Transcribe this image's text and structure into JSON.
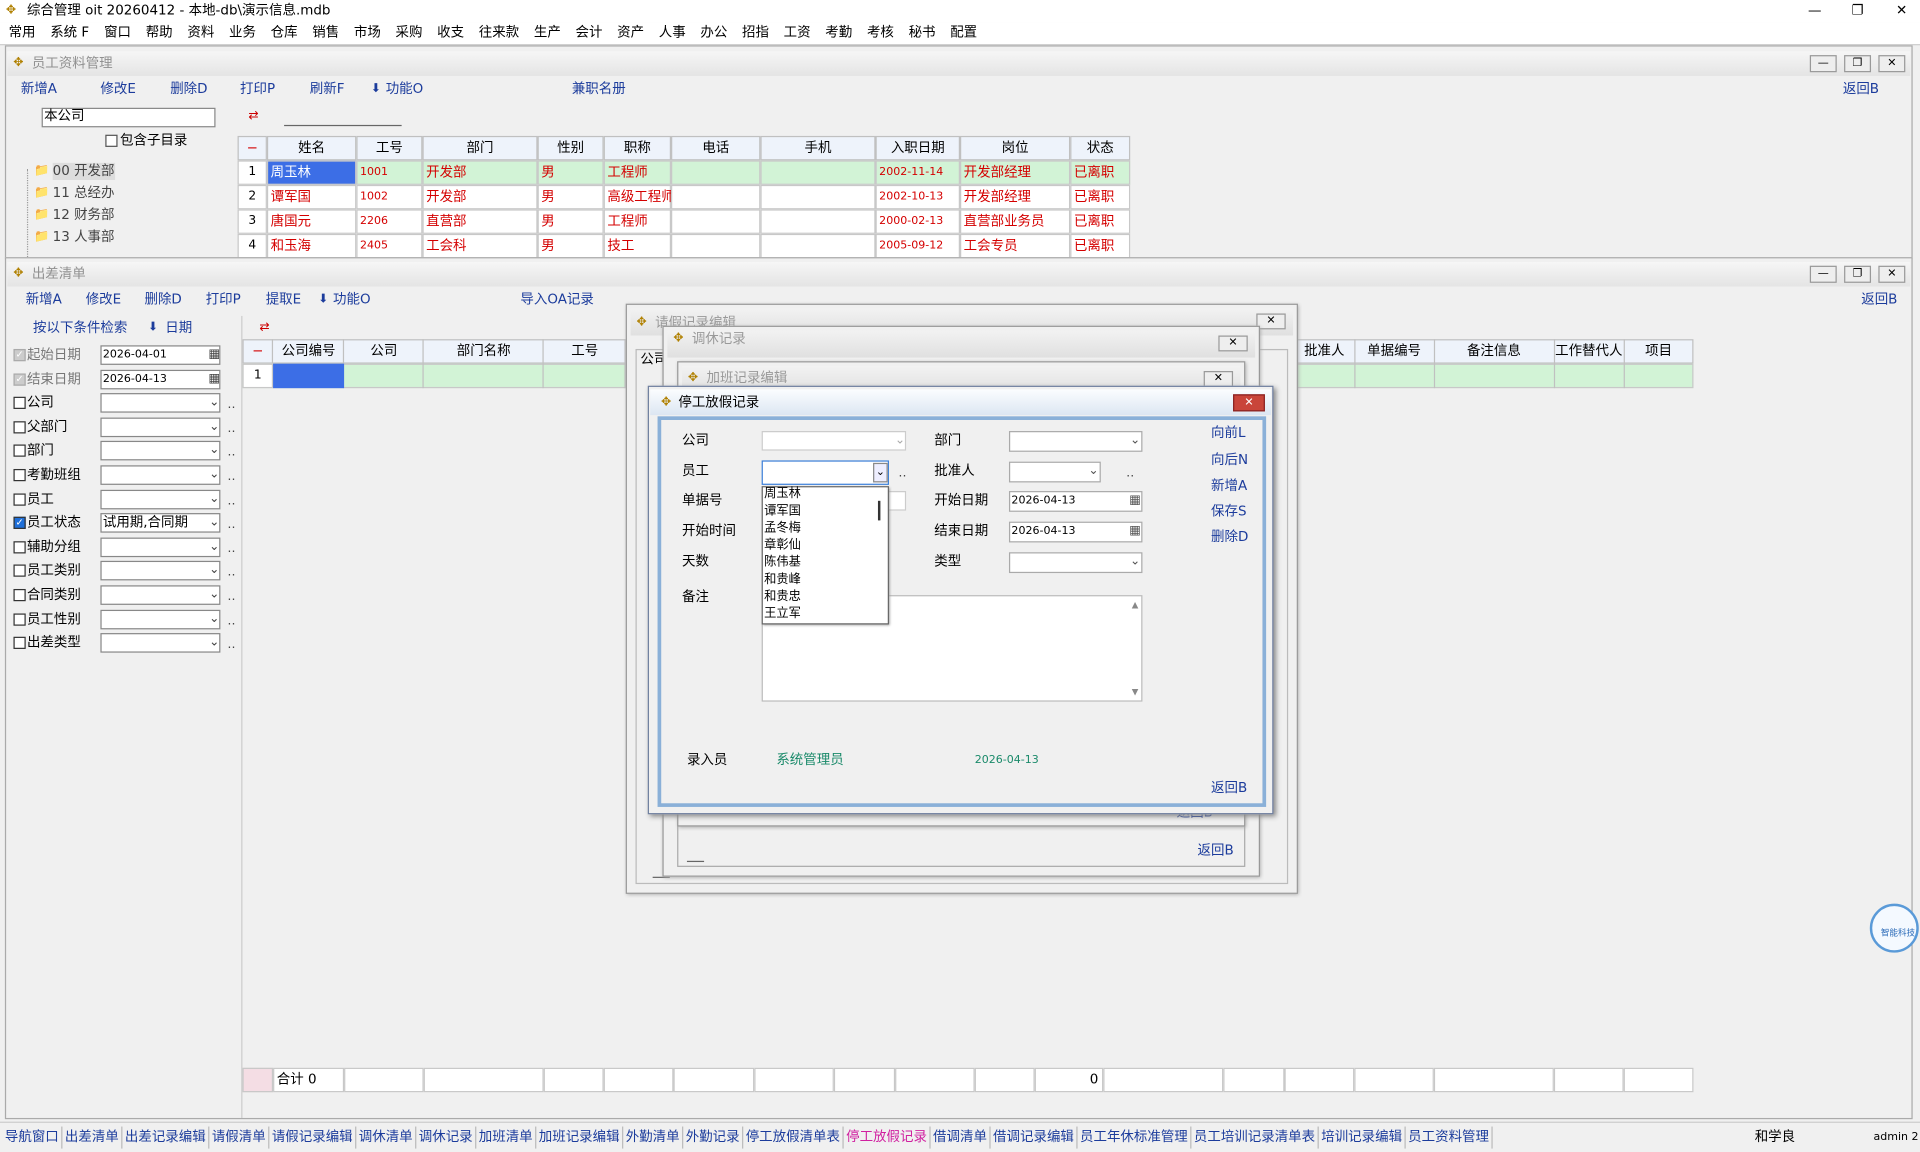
{
  "app": {
    "title": "综合管理 oit 20260412 - 本地-db\\演示信息.mdb",
    "menu": [
      "常用",
      "系统 F",
      "窗口",
      "帮助",
      "资料",
      "业务",
      "仓库",
      "销售",
      "市场",
      "采购",
      "收支",
      "往来款",
      "生产",
      "会计",
      "资产",
      "人事",
      "办公",
      "招指",
      "工资",
      "考勤",
      "考核",
      "秘书",
      "配置"
    ]
  },
  "employee_window": {
    "title": "员工资料管理",
    "toolbar": [
      "新增A",
      "修改E",
      "删除D",
      "打印P",
      "刷新F",
      "功能O",
      "兼职名册"
    ],
    "back": "返回B",
    "company": "本公司",
    "include_sub": "包含子目录",
    "tree": [
      "00 开发部",
      "11 总经办",
      "12 财务部",
      "13 人事部"
    ],
    "headers": [
      "−",
      "姓名",
      "工号",
      "部门",
      "性别",
      "职称",
      "电话",
      "手机",
      "入职日期",
      "岗位",
      "状态"
    ],
    "rows": [
      {
        "no": "1",
        "name": "周玉林",
        "id": "1001",
        "dept": "开发部",
        "sex": "男",
        "title": "工程师",
        "hire_date": "2002-11-14",
        "post": "开发部经理",
        "status": "已离职"
      },
      {
        "no": "2",
        "name": "谭军国",
        "id": "1002",
        "dept": "开发部",
        "sex": "男",
        "title": "高级工程师",
        "hire_date": "2002-10-13",
        "post": "开发部经理",
        "status": "已离职"
      },
      {
        "no": "3",
        "name": "唐国元",
        "id": "2206",
        "dept": "直营部",
        "sex": "男",
        "title": "工程师",
        "hire_date": "2000-02-13",
        "post": "直营部业务员",
        "status": "已离职"
      },
      {
        "no": "4",
        "name": "和玉海",
        "id": "2405",
        "dept": "工会科",
        "sex": "男",
        "title": "技工",
        "hire_date": "2005-09-12",
        "post": "工会专员",
        "status": "已离职"
      }
    ]
  },
  "trip_window": {
    "title": "出差清单",
    "toolbar": [
      "新增A",
      "修改E",
      "删除D",
      "打印P",
      "提取E",
      "功能O",
      "导入OA记录"
    ],
    "back": "返回B",
    "search": "按以下条件检索",
    "sort": "日期",
    "filters": [
      {
        "label": "起始日期",
        "value": "2026-04-01",
        "checked": true,
        "disabled": true
      },
      {
        "label": "结束日期",
        "value": "2026-04-13",
        "checked": true,
        "disabled": true
      },
      {
        "label": "公司",
        "checked": false
      },
      {
        "label": "父部门",
        "checked": false
      },
      {
        "label": "部门",
        "checked": false
      },
      {
        "label": "考勤班组",
        "checked": false
      },
      {
        "label": "员工",
        "checked": false
      },
      {
        "label": "员工状态",
        "value": "试用期,合同期",
        "checked": true
      },
      {
        "label": "辅助分组",
        "checked": false
      },
      {
        "label": "员工类别",
        "checked": false
      },
      {
        "label": "合同类别",
        "checked": false
      },
      {
        "label": "员工性别",
        "checked": false
      },
      {
        "label": "出差类型",
        "checked": false
      }
    ],
    "headers_left": [
      "−",
      "公司编号",
      "公司",
      "部门名称",
      "工号"
    ],
    "headers_right": [
      "批准人",
      "单据编号",
      "备注信息",
      "工作替代人",
      "项目"
    ],
    "row_no": "1",
    "total_label": "合计 0",
    "total_value": "0"
  },
  "dialogs": [
    {
      "title": "请假记录编辑",
      "label": "公司"
    },
    {
      "title": "调休记录",
      "back": "返回B"
    },
    {
      "title": "加班记录编辑",
      "back": "返回B"
    }
  ],
  "stop_dialog": {
    "title": "停工放假记录",
    "left_fields": [
      {
        "label": "公司"
      },
      {
        "label": "员工"
      },
      {
        "label": "单据号"
      },
      {
        "label": "开始时间"
      },
      {
        "label": "天数"
      }
    ],
    "right_fields": [
      {
        "label": "部门"
      },
      {
        "label": "批准人"
      },
      {
        "label": "开始日期",
        "value": "2026-04-13"
      },
      {
        "label": "结束日期",
        "value": "2026-04-13"
      },
      {
        "label": "类型"
      }
    ],
    "remark": "备注",
    "buttons": [
      "向前L",
      "向后N",
      "新增A",
      "保存S",
      "删除D"
    ],
    "back": "返回B",
    "entry_label": "录入员",
    "entry_user": "系统管理员",
    "entry_date": "2026-04-13",
    "employee_list": [
      "周玉林",
      "谭军国",
      "孟冬梅",
      "章彰仙",
      "陈伟基",
      "和贵峰",
      "和贵忠",
      "王立军"
    ]
  },
  "taskbar": {
    "items": [
      "导航窗口",
      "出差清单",
      "出差记录编辑",
      "请假清单",
      "请假记录编辑",
      "调休清单",
      "调休记录",
      "加班清单",
      "加班记录编辑",
      "外勤清单",
      "外勤记录",
      "停工放假清单表",
      "停工放假记录",
      "借调清单",
      "借调记录编辑",
      "员工年休标准管理",
      "员工培训记录清单表",
      "培训记录编辑",
      "员工资料管理"
    ],
    "active": 12,
    "user": "和学良",
    "login": "admin 2"
  },
  "logo": "智能科技"
}
